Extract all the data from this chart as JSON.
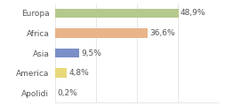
{
  "categories": [
    "Europa",
    "Africa",
    "Asia",
    "America",
    "Apolidi"
  ],
  "values": [
    48.9,
    36.6,
    9.5,
    4.8,
    0.2
  ],
  "labels": [
    "48,9%",
    "36,6%",
    "9,5%",
    "4,8%",
    "0,2%"
  ],
  "bar_colors": [
    "#b5c98e",
    "#e8b48a",
    "#7b8ec8",
    "#e8d87a",
    "#dddddd"
  ],
  "background_color": "#ffffff",
  "xlim": [
    0,
    65
  ],
  "bar_height": 0.45,
  "label_fontsize": 6.5,
  "tick_fontsize": 6.5,
  "grid_color": "#dddddd",
  "text_color": "#555555"
}
